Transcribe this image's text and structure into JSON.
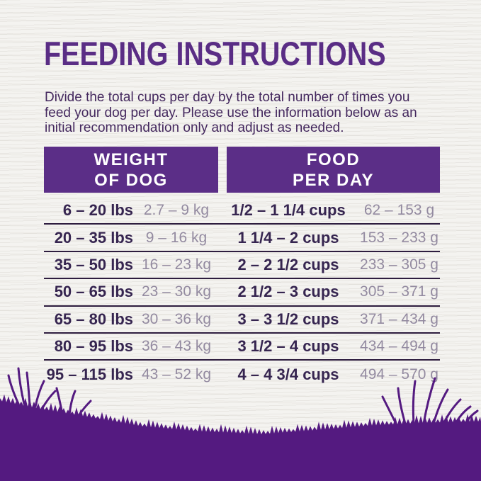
{
  "page": {
    "title": "FEEDING INSTRUCTIONS",
    "intro": {
      "line1": "Divide the total cups per day by the total number of times you",
      "line2": "feed your dog per day. Please use the information below as an",
      "line3": "initial recommendation only and adjust as needed."
    }
  },
  "table": {
    "headers": {
      "weight": {
        "line1": "WEIGHT",
        "line2": "OF DOG"
      },
      "food": {
        "line1": "FOOD",
        "line2": "PER DAY"
      }
    },
    "rows": [
      {
        "lbs": "6 – 20 lbs",
        "kg": "2.7 – 9 kg",
        "cups": "1/2 – 1 1/4 cups",
        "grams": "62 – 153 g"
      },
      {
        "lbs": "20 – 35 lbs",
        "kg": "9 – 16 kg",
        "cups": "1 1/4 – 2 cups",
        "grams": "153 – 233 g"
      },
      {
        "lbs": "35 – 50 lbs",
        "kg": "16 – 23 kg",
        "cups": "2 – 2 1/2 cups",
        "grams": "233 – 305 g"
      },
      {
        "lbs": "50 – 65 lbs",
        "kg": "23 – 30 kg",
        "cups": "2 1/2 – 3 cups",
        "grams": "305 – 371 g"
      },
      {
        "lbs": "65 – 80 lbs",
        "kg": "30 – 36 kg",
        "cups": "3 – 3 1/2 cups",
        "grams": "371 – 434 g"
      },
      {
        "lbs": "80 – 95 lbs",
        "kg": "36 – 43 kg",
        "cups": "3 1/2 – 4 cups",
        "grams": "434 – 494 g"
      },
      {
        "lbs": "95 – 115 lbs",
        "kg": "43 – 52 kg",
        "cups": "4 – 4 3/4 cups",
        "grams": "494 – 570 g"
      }
    ]
  },
  "colors": {
    "title_purple": "#5a2d85",
    "header_block_purple": "#5b2e87",
    "header_text": "#ffffff",
    "dark_cell_text": "#362550",
    "gray_cell_text": "#938aa0",
    "separator_line": "#2e1d3f",
    "grass_purple": "#541a80",
    "background": "#f4f3f0"
  }
}
